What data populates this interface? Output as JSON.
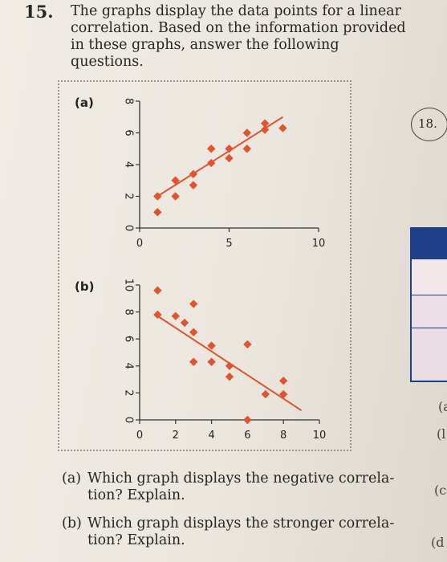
{
  "problem": {
    "number": "15.",
    "intro_lines": [
      "The graphs display the data points for a linear",
      "correlation. Based on the information provided",
      "in these graphs, answer the following questions."
    ]
  },
  "questions": [
    {
      "label": "(a)",
      "lines": [
        "Which graph displays the negative correla-",
        "tion? Explain."
      ]
    },
    {
      "label": "(b)",
      "lines": [
        "Which graph displays the stronger correla-",
        "tion? Explain."
      ]
    }
  ],
  "sidebar": {
    "circled_number": "18.",
    "partial_letters": [
      "(a",
      "(l",
      "(c",
      "(d"
    ]
  },
  "colors": {
    "points": "#e0542e",
    "line": "#e0542e",
    "axis": "#333333"
  },
  "chart_data": [
    {
      "type": "scatter",
      "panel_label": "(a)",
      "xlim": [
        0,
        10
      ],
      "ylim": [
        0,
        8
      ],
      "x_ticks": [
        "0",
        "5",
        "10"
      ],
      "x_tick_values": [
        0,
        5,
        10
      ],
      "y_ticks": [
        "0",
        "2",
        "4",
        "6",
        "8"
      ],
      "y_tick_values": [
        0,
        2,
        4,
        6,
        8
      ],
      "points": [
        {
          "x": 1,
          "y": 1
        },
        {
          "x": 1,
          "y": 2
        },
        {
          "x": 2,
          "y": 2
        },
        {
          "x": 2,
          "y": 3
        },
        {
          "x": 3,
          "y": 2.7
        },
        {
          "x": 3,
          "y": 3.4
        },
        {
          "x": 4,
          "y": 4.1
        },
        {
          "x": 4,
          "y": 5
        },
        {
          "x": 5,
          "y": 4.4
        },
        {
          "x": 5,
          "y": 5
        },
        {
          "x": 6,
          "y": 5
        },
        {
          "x": 6,
          "y": 6
        },
        {
          "x": 7,
          "y": 6.2
        },
        {
          "x": 7,
          "y": 6.6
        },
        {
          "x": 8,
          "y": 6.3
        }
      ],
      "trend_line": {
        "x": [
          1,
          8
        ],
        "y": [
          2,
          7
        ]
      }
    },
    {
      "type": "scatter",
      "panel_label": "(b)",
      "xlim": [
        0,
        10
      ],
      "ylim": [
        0,
        10
      ],
      "x_ticks": [
        "0",
        "2",
        "4",
        "6",
        "8",
        "10"
      ],
      "x_tick_values": [
        0,
        2,
        4,
        6,
        8,
        10
      ],
      "y_ticks": [
        "0",
        "2",
        "4",
        "6",
        "8",
        "10"
      ],
      "y_tick_values": [
        0,
        2,
        4,
        6,
        8,
        10
      ],
      "points": [
        {
          "x": 1,
          "y": 9.6
        },
        {
          "x": 1,
          "y": 7.8
        },
        {
          "x": 2,
          "y": 7.7
        },
        {
          "x": 3,
          "y": 8.6
        },
        {
          "x": 2.5,
          "y": 7.2
        },
        {
          "x": 3,
          "y": 6.5
        },
        {
          "x": 3,
          "y": 4.3
        },
        {
          "x": 4,
          "y": 4.3
        },
        {
          "x": 4,
          "y": 5.5
        },
        {
          "x": 5,
          "y": 4
        },
        {
          "x": 6,
          "y": 5.6
        },
        {
          "x": 5,
          "y": 3.2
        },
        {
          "x": 6,
          "y": 0
        },
        {
          "x": 7,
          "y": 1.9
        },
        {
          "x": 8,
          "y": 1.9
        },
        {
          "x": 8,
          "y": 2.9
        }
      ],
      "trend_line": {
        "x": [
          1,
          9
        ],
        "y": [
          7.7,
          0.7
        ]
      }
    }
  ]
}
